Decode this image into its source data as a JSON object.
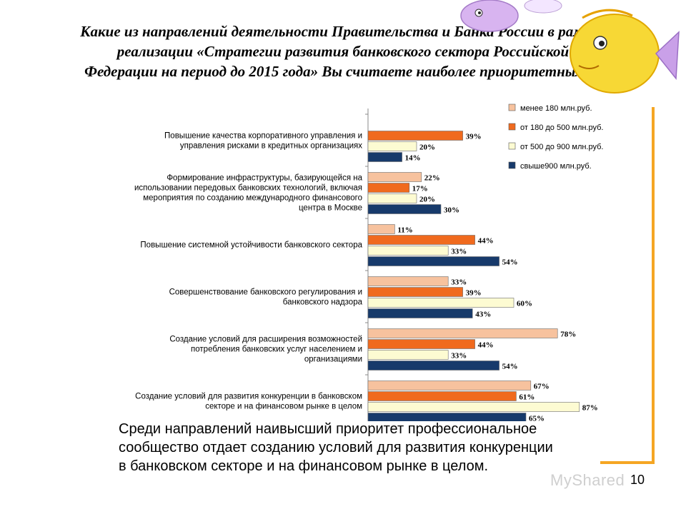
{
  "title": {
    "lines": [
      "Какие из направлений деятельности Правительства и Банка России в рамках",
      "реализации «Стратегии развития банковского сектора Российской",
      "Федерации на период до 2015 года» Вы считаете наиболее приоритетными?"
    ]
  },
  "summary": {
    "lines": [
      "Среди направлений наивысший приоритет профессиональное",
      "сообщество отдает созданию условий для развития конкуренции",
      "в банковском секторе и на финансовом рынке в целом."
    ]
  },
  "page_number": "10",
  "watermark": "MyShared",
  "colors": {
    "accent_bracket": "#f5a623",
    "fish_body": "#f7d835"
  },
  "chart_data": {
    "type": "bar",
    "orientation": "horizontal",
    "categories": [
      [
        "Повышение качества корпоративного управления и",
        "управления рисками в кредитных организациях"
      ],
      [
        "Формирование инфраструктуры, базирующейся на",
        "использовании передовых банковских технологий, включая",
        "мероприятия по созданию международного финансового",
        "центра в Москве"
      ],
      [
        "Повышение системной устойчивости банковского сектора"
      ],
      [
        "Совершенствование банковского регулирования и",
        "банковского надзора"
      ],
      [
        "Создание условий для расширения возможностей",
        "потребления банковских услуг населением и",
        "организациями"
      ],
      [
        "Создание условий для развития конкуренции в банковском",
        "секторе и на финансовом рынке в целом"
      ]
    ],
    "series": [
      {
        "name": "менее 180 млн.руб.",
        "color": "#f7c29e",
        "values": [
          null,
          22,
          11,
          33,
          78,
          67
        ]
      },
      {
        "name": "от 180 до 500 млн.руб.",
        "color": "#f06a1e",
        "values": [
          39,
          17,
          44,
          39,
          44,
          61
        ]
      },
      {
        "name": "от 500 до 900 млн.руб.",
        "color": "#fdfbd2",
        "values": [
          20,
          20,
          33,
          60,
          33,
          87
        ]
      },
      {
        "name": "свыше900 млн.руб.",
        "color": "#173a6b",
        "values": [
          14,
          30,
          54,
          43,
          54,
          65
        ]
      }
    ],
    "value_suffix": "%",
    "xlim": [
      0,
      100
    ],
    "legend_position": "top-right",
    "grid": false
  }
}
